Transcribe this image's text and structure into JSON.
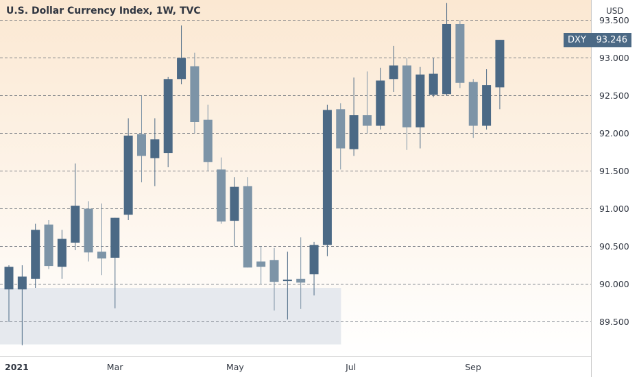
{
  "title": "U.S. Dollar Currency Index, 1W, TVC",
  "currency": "USD",
  "last_price": {
    "symbol": "DXY",
    "value": "93.246"
  },
  "colors": {
    "up": "#4b6985",
    "down": "#7d94a7",
    "grid": "#555e6a",
    "axis": "#c9c9c9",
    "zone": "#e6e9ee",
    "bg_top": "#fbe8d2",
    "bg_bottom": "#ffffff"
  },
  "chart_data": {
    "type": "candlestick",
    "title": "U.S. Dollar Currency Index, 1W, TVC",
    "ylim": [
      89.0,
      93.75
    ],
    "y_ticks": [
      "89.500",
      "90.000",
      "90.500",
      "91.000",
      "91.500",
      "92.000",
      "92.500",
      "93.000",
      "93.500"
    ],
    "x_ticks": [
      "2021",
      "Mar",
      "May",
      "Jul",
      "Sep"
    ],
    "x_tick_candle_index": [
      0,
      8,
      17,
      26,
      35
    ],
    "grid": "horizontal dashed",
    "support_zone": {
      "low": 89.2,
      "high": 89.95,
      "start_index": 0,
      "end_index": 24
    },
    "candles": [
      {
        "open": 89.93,
        "high": 90.25,
        "low": 89.5,
        "close": 90.23
      },
      {
        "open": 89.93,
        "high": 90.25,
        "low": 89.19,
        "close": 90.1
      },
      {
        "open": 90.07,
        "high": 90.8,
        "low": 89.95,
        "close": 90.72
      },
      {
        "open": 90.79,
        "high": 90.85,
        "low": 90.2,
        "close": 90.24
      },
      {
        "open": 90.23,
        "high": 90.72,
        "low": 90.07,
        "close": 90.6
      },
      {
        "open": 90.55,
        "high": 91.6,
        "low": 90.45,
        "close": 91.04
      },
      {
        "open": 91.0,
        "high": 91.1,
        "low": 90.3,
        "close": 90.42
      },
      {
        "open": 90.43,
        "high": 91.07,
        "low": 90.12,
        "close": 90.34
      },
      {
        "open": 90.35,
        "high": 90.88,
        "low": 89.68,
        "close": 90.88
      },
      {
        "open": 90.92,
        "high": 92.2,
        "low": 90.85,
        "close": 91.97
      },
      {
        "open": 91.99,
        "high": 92.5,
        "low": 91.35,
        "close": 91.7
      },
      {
        "open": 91.67,
        "high": 92.2,
        "low": 91.3,
        "close": 91.92
      },
      {
        "open": 91.74,
        "high": 92.75,
        "low": 91.55,
        "close": 92.72
      },
      {
        "open": 92.72,
        "high": 93.43,
        "low": 92.65,
        "close": 93.0
      },
      {
        "open": 92.89,
        "high": 93.07,
        "low": 92.0,
        "close": 92.15
      },
      {
        "open": 92.18,
        "high": 92.38,
        "low": 91.5,
        "close": 91.62
      },
      {
        "open": 91.52,
        "high": 91.68,
        "low": 90.8,
        "close": 90.83
      },
      {
        "open": 90.84,
        "high": 91.42,
        "low": 90.5,
        "close": 91.29
      },
      {
        "open": 91.3,
        "high": 91.42,
        "low": 90.22,
        "close": 90.22
      },
      {
        "open": 90.3,
        "high": 90.5,
        "low": 90.0,
        "close": 90.23
      },
      {
        "open": 90.32,
        "high": 90.48,
        "low": 89.65,
        "close": 90.03
      },
      {
        "open": 90.04,
        "high": 90.43,
        "low": 89.53,
        "close": 90.06
      },
      {
        "open": 90.07,
        "high": 90.62,
        "low": 89.67,
        "close": 90.02
      },
      {
        "open": 90.13,
        "high": 90.56,
        "low": 89.85,
        "close": 90.52
      },
      {
        "open": 90.52,
        "high": 92.38,
        "low": 90.37,
        "close": 92.31
      },
      {
        "open": 92.32,
        "high": 92.4,
        "low": 91.52,
        "close": 91.8
      },
      {
        "open": 91.79,
        "high": 92.74,
        "low": 91.7,
        "close": 92.24
      },
      {
        "open": 92.24,
        "high": 92.82,
        "low": 92.0,
        "close": 92.1
      },
      {
        "open": 92.1,
        "high": 92.87,
        "low": 92.05,
        "close": 92.7
      },
      {
        "open": 92.72,
        "high": 93.16,
        "low": 92.55,
        "close": 92.9
      },
      {
        "open": 92.9,
        "high": 93.0,
        "low": 91.78,
        "close": 92.08
      },
      {
        "open": 92.08,
        "high": 92.88,
        "low": 91.8,
        "close": 92.78
      },
      {
        "open": 92.51,
        "high": 93.0,
        "low": 92.48,
        "close": 92.79
      },
      {
        "open": 92.52,
        "high": 93.73,
        "low": 92.5,
        "close": 93.45
      },
      {
        "open": 93.45,
        "high": 93.5,
        "low": 92.6,
        "close": 92.67
      },
      {
        "open": 92.68,
        "high": 92.72,
        "low": 91.94,
        "close": 92.1
      },
      {
        "open": 92.1,
        "high": 92.85,
        "low": 92.05,
        "close": 92.64
      },
      {
        "open": 92.61,
        "high": 93.24,
        "low": 92.32,
        "close": 93.24
      }
    ]
  }
}
